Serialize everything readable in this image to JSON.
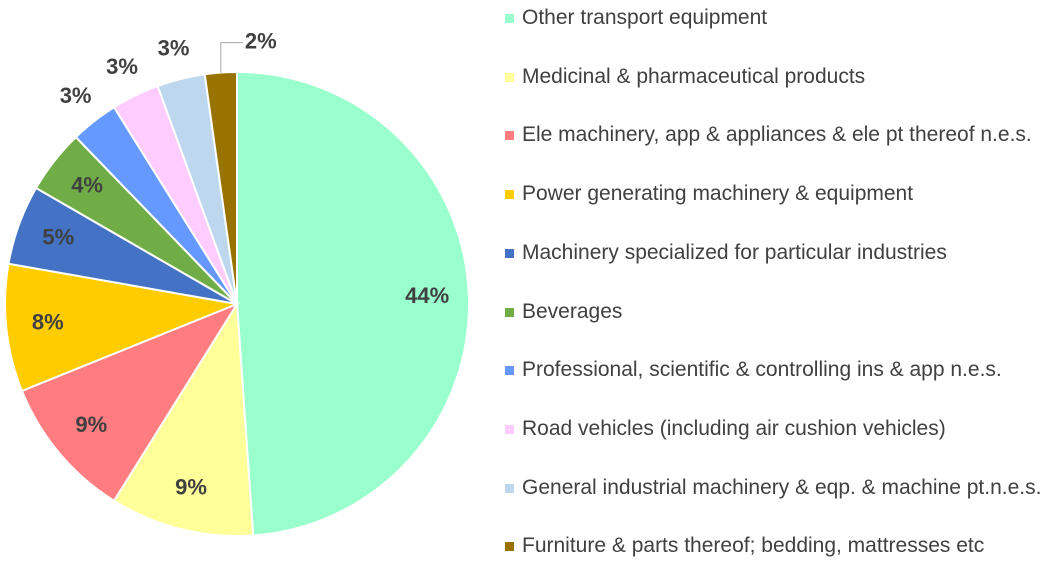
{
  "chart_data": {
    "type": "pie",
    "categories": [
      "Other transport equipment",
      "Medicinal & pharmaceutical products",
      "Ele machinery, app & appliances & ele pt thereof n.e.s.",
      "Power generating machinery & equipment",
      "Machinery specialized for particular industries",
      "Beverages",
      "Professional, scientific & controlling ins & app n.e.s.",
      "Road vehicles (including air cushion vehicles)",
      "General industrial machinery & eqp. & machine pt.n.e.s.",
      "Furniture & parts thereof; bedding, mattresses etc"
    ],
    "values": [
      44,
      9,
      9,
      8,
      5,
      4,
      3,
      3,
      3,
      2
    ],
    "value_labels": [
      "44%",
      "9%",
      "9%",
      "8%",
      "5%",
      "4%",
      "3%",
      "3%",
      "3%",
      "2%"
    ],
    "colors": [
      "#99ffcc",
      "#ffff99",
      "#ff7c80",
      "#ffcc00",
      "#4472c4",
      "#70ad47",
      "#6699ff",
      "#ffccff",
      "#bdd7ee",
      "#997300"
    ],
    "legend": "right"
  }
}
